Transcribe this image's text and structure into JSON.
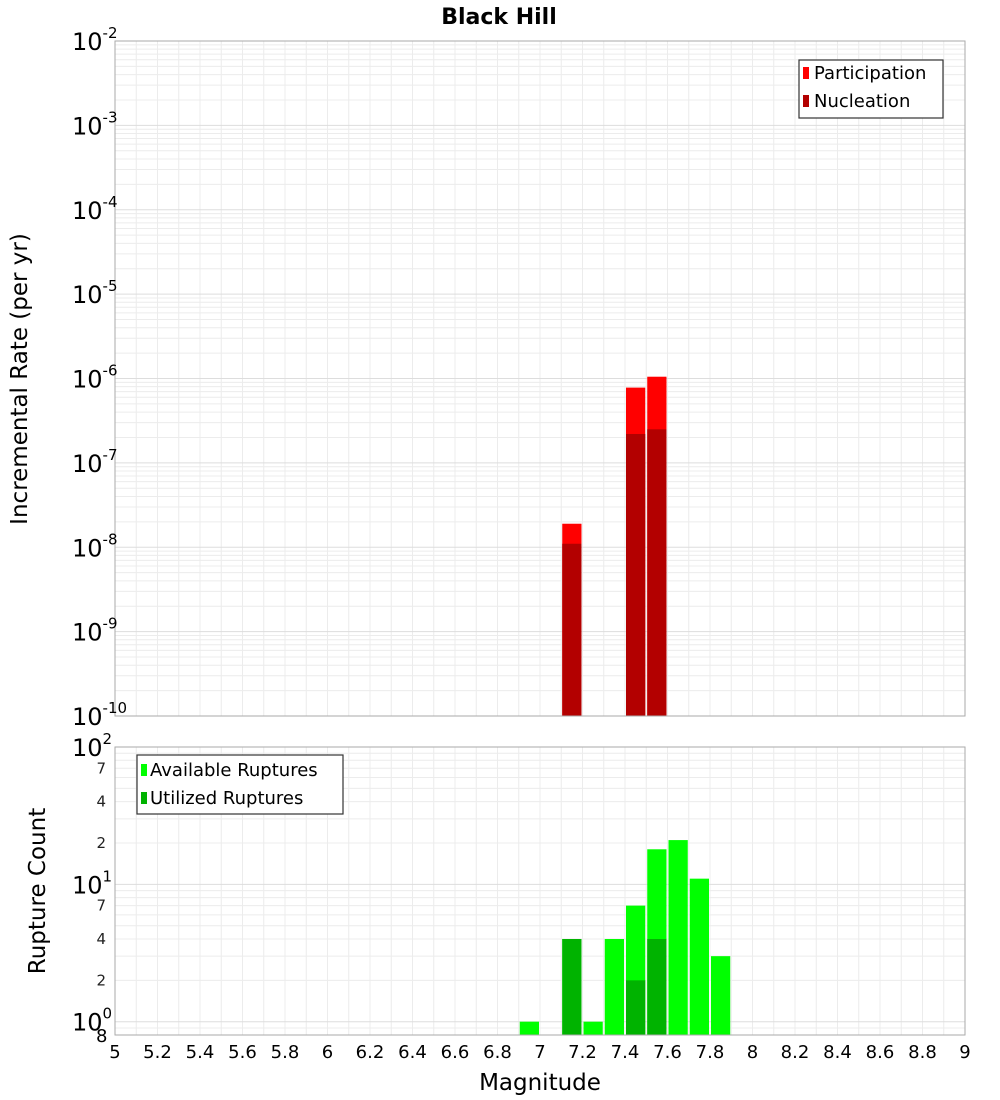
{
  "chart_data": [
    {
      "type": "bar",
      "title": "Black Hill",
      "ylabel": "Incremental Rate (per yr)",
      "xlabel": "",
      "xlim": [
        5,
        9
      ],
      "ylim": [
        1e-10,
        0.01
      ],
      "yscale": "log",
      "grid": true,
      "legend_position": "top-right",
      "bar_width": 0.1,
      "y_tick_exponents": [
        -10,
        -9,
        -8,
        -7,
        -6,
        -5,
        -4,
        -3,
        -2
      ],
      "series": [
        {
          "name": "Participation",
          "color": "#ff0000",
          "x": [
            7.15,
            7.45,
            7.55
          ],
          "values": [
            1.9e-08,
            7.8e-07,
            1.05e-06
          ]
        },
        {
          "name": "Nucleation",
          "color": "#b30000",
          "x": [
            7.15,
            7.45,
            7.55
          ],
          "values": [
            1.1e-08,
            2.2e-07,
            2.5e-07
          ]
        }
      ]
    },
    {
      "type": "bar",
      "title": "",
      "ylabel": "Rupture Count",
      "xlabel": "Magnitude",
      "xlim": [
        5,
        9
      ],
      "ylim": [
        0.8,
        100
      ],
      "yscale": "log",
      "grid": true,
      "legend_position": "top-left",
      "bar_width": 0.1,
      "x_ticks": [
        "5",
        "5.2",
        "5.4",
        "5.6",
        "5.8",
        "6",
        "6.2",
        "6.4",
        "6.6",
        "6.8",
        "7",
        "7.2",
        "7.4",
        "7.6",
        "7.8",
        "8",
        "8.2",
        "8.4",
        "8.6",
        "8.8",
        "9"
      ],
      "y_tick_exponents": [
        0,
        1,
        2
      ],
      "y_minor_labels": [
        "8",
        "2",
        "4",
        "7",
        "2",
        "4",
        "7"
      ],
      "series": [
        {
          "name": "Available Ruptures",
          "color": "#00ff00",
          "x": [
            6.95,
            7.15,
            7.25,
            7.35,
            7.45,
            7.55,
            7.65,
            7.75,
            7.85
          ],
          "values": [
            1,
            4,
            1,
            4,
            7,
            18,
            21,
            11,
            3
          ]
        },
        {
          "name": "Utilized Ruptures",
          "color": "#00b300",
          "x": [
            7.15,
            7.45,
            7.55
          ],
          "values": [
            4,
            2,
            4
          ]
        }
      ]
    }
  ]
}
